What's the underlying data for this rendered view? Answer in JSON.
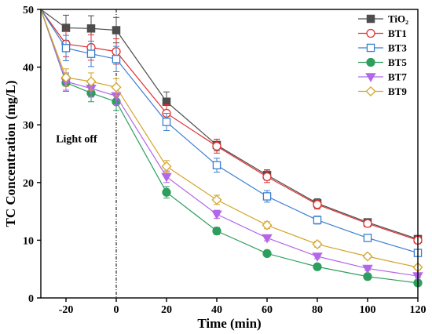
{
  "chart_data": {
    "type": "line",
    "xlabel": "Time (min)",
    "ylabel": "TC Concentration (mg/L)",
    "xlim": [
      -30,
      120
    ],
    "ylim": [
      0,
      50
    ],
    "xticks": [
      -20,
      0,
      20,
      40,
      60,
      80,
      100,
      120
    ],
    "yticks": [
      0,
      10,
      20,
      30,
      40,
      50
    ],
    "grid": false,
    "legend_position": "top-right",
    "annotation": {
      "text": "Light off",
      "x": 0
    },
    "x": [
      -30,
      -20,
      -10,
      0,
      20,
      40,
      60,
      80,
      100,
      120
    ],
    "series": [
      {
        "name": "TiO₂",
        "color": "#4d4d4d",
        "marker": "square-filled",
        "values": [
          50,
          46.8,
          46.7,
          46.4,
          34.0,
          26.5,
          21.3,
          16.4,
          13.1,
          10.2
        ],
        "errors": [
          0,
          2.2,
          2.2,
          2.2,
          1.7,
          1.0,
          0.9,
          0.8,
          0.6,
          0.6
        ]
      },
      {
        "name": "BT1",
        "color": "#e03030",
        "marker": "circle-open",
        "values": [
          50,
          44.0,
          43.4,
          42.7,
          32.0,
          26.3,
          21.0,
          16.2,
          12.9,
          10.0
        ],
        "errors": [
          0,
          2.2,
          2.2,
          2.2,
          1.5,
          1.2,
          1.0,
          0.8,
          0.6,
          0.6
        ]
      },
      {
        "name": "BT3",
        "color": "#3a7fd0",
        "marker": "square-open",
        "values": [
          50,
          43.3,
          42.3,
          41.4,
          30.5,
          23.0,
          17.6,
          13.5,
          10.4,
          7.8
        ],
        "errors": [
          0,
          2.2,
          2.2,
          2.2,
          1.5,
          1.2,
          1.0,
          0.7,
          0.5,
          0.5
        ]
      },
      {
        "name": "BT5",
        "color": "#2e9e5e",
        "marker": "circle-filled",
        "values": [
          50,
          37.3,
          35.5,
          34.0,
          18.3,
          11.6,
          7.7,
          5.4,
          3.7,
          2.6
        ],
        "errors": [
          0,
          1.5,
          1.5,
          1.5,
          1.0,
          0.6,
          0.4,
          0.3,
          0.3,
          0.3
        ]
      },
      {
        "name": "BT7",
        "color": "#b266e8",
        "marker": "triangle-down",
        "values": [
          50,
          37.5,
          36.3,
          35.0,
          21.0,
          14.5,
          10.4,
          7.2,
          5.1,
          3.8
        ],
        "errors": [
          0,
          1.5,
          1.5,
          1.5,
          1.0,
          0.7,
          0.5,
          0.4,
          0.3,
          0.3
        ]
      },
      {
        "name": "BT9",
        "color": "#d4a52a",
        "marker": "diamond-open",
        "values": [
          50,
          38.2,
          37.5,
          36.5,
          22.8,
          17.0,
          12.6,
          9.3,
          7.2,
          5.3
        ],
        "errors": [
          0,
          1.5,
          1.5,
          1.5,
          1.0,
          0.8,
          0.6,
          0.5,
          0.4,
          0.4
        ]
      }
    ]
  }
}
